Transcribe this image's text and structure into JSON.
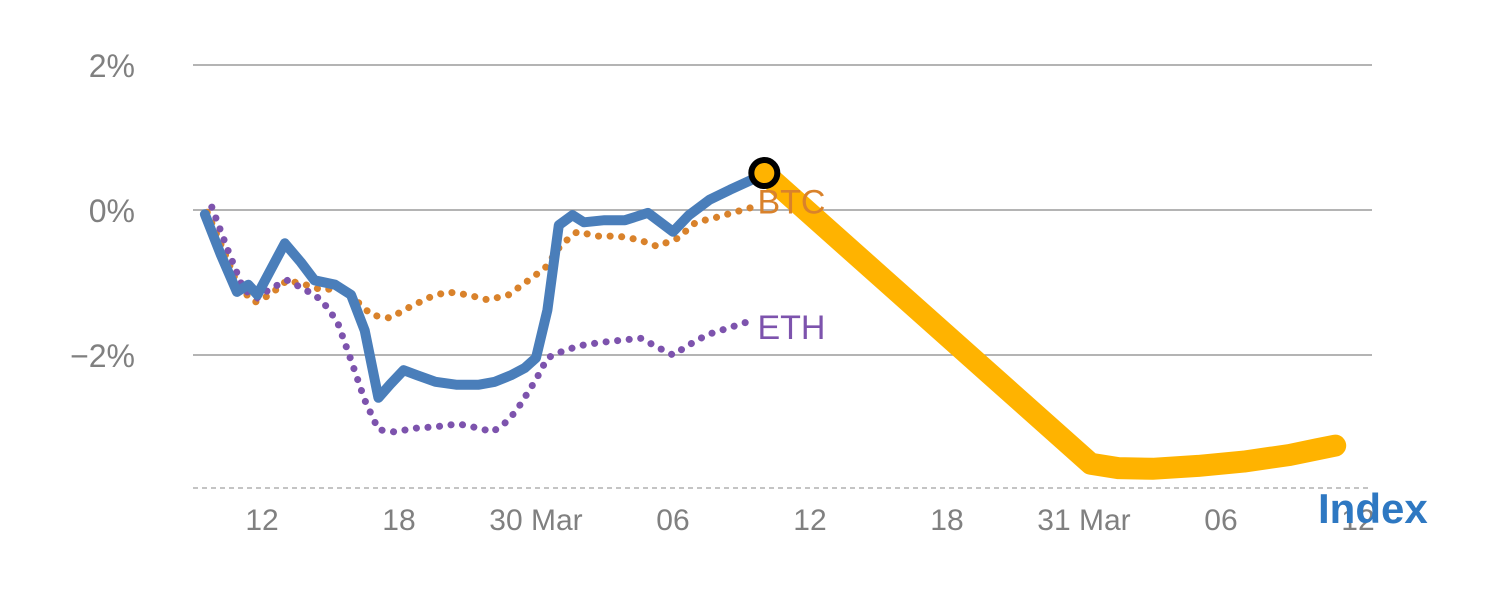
{
  "chart_data": {
    "type": "line",
    "title": "",
    "xlabel": "",
    "ylabel": "",
    "grid": "horizontal",
    "x_axis": {
      "unit": "hours (time-of-day ticks, late March)",
      "xlim": [
        9,
        61
      ],
      "ticks": [
        {
          "x": 12,
          "label": "12"
        },
        {
          "x": 18,
          "label": "18"
        },
        {
          "x": 24,
          "label": "30 Mar"
        },
        {
          "x": 30,
          "label": "06"
        },
        {
          "x": 36,
          "label": "12"
        },
        {
          "x": 42,
          "label": "18"
        },
        {
          "x": 48,
          "label": "31 Mar"
        },
        {
          "x": 54,
          "label": "06"
        },
        {
          "x": 60,
          "label": "12"
        }
      ]
    },
    "y_axis": {
      "unit": "percent change",
      "ylim": [
        -3.85,
        2.0
      ],
      "ticks": [
        {
          "y": 2,
          "label": "2%"
        },
        {
          "y": 0,
          "label": "0%"
        },
        {
          "y": -2,
          "label": "−2%"
        }
      ]
    },
    "series": [
      {
        "name": "BTC",
        "style": "dotted",
        "color": "#d9822b",
        "points": [
          [
            9.6,
            -0.03
          ],
          [
            10.4,
            -0.62
          ],
          [
            11.0,
            -1.08
          ],
          [
            11.7,
            -1.27
          ],
          [
            12.35,
            -1.17
          ],
          [
            13.1,
            -0.97
          ],
          [
            13.9,
            -1.03
          ],
          [
            14.6,
            -1.1
          ],
          [
            15.4,
            -1.08
          ],
          [
            16.1,
            -1.24
          ],
          [
            16.8,
            -1.45
          ],
          [
            17.6,
            -1.49
          ],
          [
            18.4,
            -1.35
          ],
          [
            19.3,
            -1.21
          ],
          [
            20.1,
            -1.13
          ],
          [
            21.0,
            -1.17
          ],
          [
            21.9,
            -1.24
          ],
          [
            22.8,
            -1.17
          ],
          [
            23.5,
            -1.01
          ],
          [
            24.4,
            -0.8
          ],
          [
            25.1,
            -0.48
          ],
          [
            25.8,
            -0.3
          ],
          [
            26.7,
            -0.36
          ],
          [
            27.6,
            -0.36
          ],
          [
            28.5,
            -0.41
          ],
          [
            29.3,
            -0.5
          ],
          [
            30.2,
            -0.39
          ],
          [
            31.0,
            -0.17
          ],
          [
            31.8,
            -0.11
          ],
          [
            32.7,
            -0.03
          ],
          [
            33.5,
            0.04
          ]
        ]
      },
      {
        "name": "ETH",
        "style": "dotted",
        "color": "#7d53ad",
        "points": [
          [
            9.8,
            0.04
          ],
          [
            10.5,
            -0.55
          ],
          [
            11.2,
            -1.1
          ],
          [
            11.8,
            -1.21
          ],
          [
            12.4,
            -1.08
          ],
          [
            13.1,
            -0.97
          ],
          [
            13.9,
            -1.1
          ],
          [
            14.6,
            -1.24
          ],
          [
            15.3,
            -1.54
          ],
          [
            15.9,
            -2.07
          ],
          [
            16.5,
            -2.62
          ],
          [
            17.1,
            -3.03
          ],
          [
            17.8,
            -3.06
          ],
          [
            18.7,
            -3.01
          ],
          [
            19.6,
            -2.99
          ],
          [
            20.6,
            -2.95
          ],
          [
            21.5,
            -3.01
          ],
          [
            22.1,
            -3.06
          ],
          [
            22.8,
            -2.9
          ],
          [
            23.3,
            -2.69
          ],
          [
            24.0,
            -2.34
          ],
          [
            24.5,
            -2.04
          ],
          [
            25.3,
            -1.93
          ],
          [
            26.1,
            -1.86
          ],
          [
            27.0,
            -1.82
          ],
          [
            27.9,
            -1.79
          ],
          [
            28.6,
            -1.77
          ],
          [
            29.3,
            -1.89
          ],
          [
            30.0,
            -2.0
          ],
          [
            30.7,
            -1.86
          ],
          [
            31.5,
            -1.72
          ],
          [
            32.4,
            -1.63
          ],
          [
            33.3,
            -1.54
          ]
        ]
      },
      {
        "name": "Index",
        "style": "solid",
        "color": "#4a7eba",
        "points": [
          [
            9.5,
            -0.06
          ],
          [
            10.2,
            -0.62
          ],
          [
            10.9,
            -1.13
          ],
          [
            11.4,
            -1.03
          ],
          [
            11.8,
            -1.17
          ],
          [
            13.0,
            -0.46
          ],
          [
            13.7,
            -0.72
          ],
          [
            14.3,
            -0.97
          ],
          [
            15.2,
            -1.03
          ],
          [
            15.9,
            -1.17
          ],
          [
            16.5,
            -1.66
          ],
          [
            17.1,
            -2.59
          ],
          [
            17.6,
            -2.41
          ],
          [
            18.2,
            -2.21
          ],
          [
            18.8,
            -2.28
          ],
          [
            19.6,
            -2.37
          ],
          [
            20.5,
            -2.41
          ],
          [
            21.5,
            -2.41
          ],
          [
            22.2,
            -2.37
          ],
          [
            22.9,
            -2.28
          ],
          [
            23.5,
            -2.18
          ],
          [
            24.0,
            -2.04
          ],
          [
            24.5,
            -1.38
          ],
          [
            25.0,
            -0.21
          ],
          [
            25.6,
            -0.07
          ],
          [
            26.1,
            -0.17
          ],
          [
            27.0,
            -0.14
          ],
          [
            27.9,
            -0.14
          ],
          [
            28.9,
            -0.04
          ],
          [
            30.0,
            -0.3
          ],
          [
            30.7,
            -0.07
          ],
          [
            31.6,
            0.14
          ],
          [
            32.5,
            0.28
          ],
          [
            33.4,
            0.41
          ],
          [
            34.0,
            0.51
          ]
        ]
      },
      {
        "name": "Index-projection",
        "style": "thick",
        "color": "#ffb300",
        "points": [
          [
            34.0,
            0.51
          ],
          [
            48.3,
            -3.5
          ],
          [
            49.5,
            -3.56
          ],
          [
            51.0,
            -3.57
          ],
          [
            53.0,
            -3.53
          ],
          [
            55.0,
            -3.47
          ],
          [
            57.0,
            -3.38
          ],
          [
            58.2,
            -3.3
          ],
          [
            59.0,
            -3.25
          ]
        ]
      }
    ],
    "marker": {
      "shape": "ring",
      "x": 34.0,
      "y": 0.51,
      "stroke": "#000000",
      "fill": "#ffb300"
    },
    "labels": [
      {
        "id": "btc",
        "text": "BTC",
        "color": "#d9822b",
        "bold": false,
        "anchor": {
          "x": 33.7,
          "y": -0.05
        }
      },
      {
        "id": "eth",
        "text": "ETH",
        "color": "#7d53ad",
        "bold": false,
        "anchor": {
          "x": 33.7,
          "y": -1.78
        }
      },
      {
        "id": "index",
        "text": "Index",
        "color": "#2e78c2",
        "bold": true,
        "anchor": {
          "x": 58.25,
          "y": -4.32
        }
      }
    ],
    "colors": {
      "grid": "#9b9b9b",
      "axis": "#b0b0b0",
      "tick_text": "#808080"
    }
  }
}
